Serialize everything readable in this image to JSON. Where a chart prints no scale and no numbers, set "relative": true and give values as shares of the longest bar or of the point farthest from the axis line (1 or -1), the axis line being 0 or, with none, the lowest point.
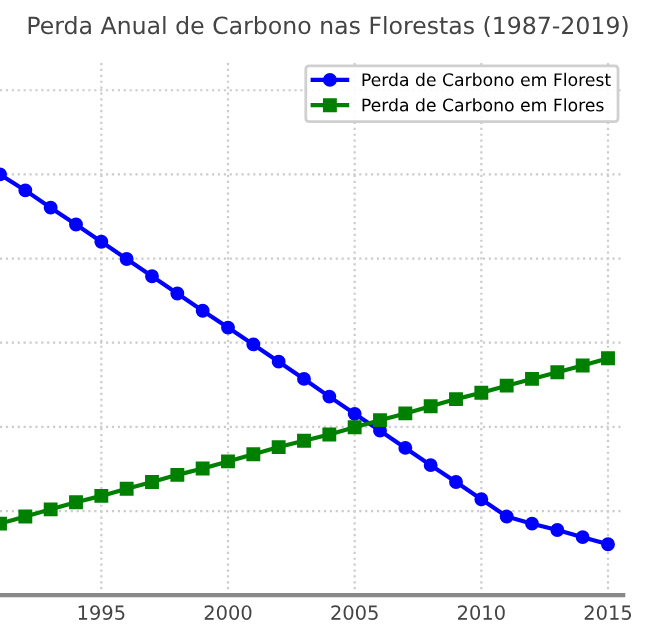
{
  "chart_data": {
    "type": "line",
    "title": "Perda Anual de Carbono nas Florestas (1987-2019)",
    "relative": true,
    "x": [
      1991,
      1992,
      1993,
      1994,
      1995,
      1996,
      1997,
      1998,
      1999,
      2000,
      2001,
      2002,
      2003,
      2004,
      2005,
      2006,
      2007,
      2008,
      2009,
      2010,
      2011,
      2012,
      2013,
      2014,
      2015
    ],
    "xlim": [
      1991,
      2015.6
    ],
    "xticks": [
      1995,
      2000,
      2005,
      2010,
      2015
    ],
    "series": [
      {
        "name": "Perda de Carbono em Florest",
        "color": "#0000ff",
        "marker": "circle",
        "values": [
          1.0,
          0.962,
          0.921,
          0.881,
          0.84,
          0.799,
          0.758,
          0.717,
          0.676,
          0.636,
          0.596,
          0.555,
          0.514,
          0.472,
          0.431,
          0.391,
          0.35,
          0.309,
          0.269,
          0.228,
          0.187,
          0.17,
          0.155,
          0.138,
          0.121
        ]
      },
      {
        "name": "Perda de Carbono em Flores",
        "color": "#008000",
        "marker": "square",
        "values": [
          0.17,
          0.187,
          0.204,
          0.221,
          0.236,
          0.253,
          0.269,
          0.286,
          0.301,
          0.318,
          0.335,
          0.352,
          0.367,
          0.382,
          0.399,
          0.416,
          0.432,
          0.449,
          0.466,
          0.481,
          0.498,
          0.514,
          0.53,
          0.546,
          0.563
        ]
      }
    ],
    "grid": true,
    "legend": "top right",
    "tick_labels": "x",
    "line_style": "solid"
  }
}
